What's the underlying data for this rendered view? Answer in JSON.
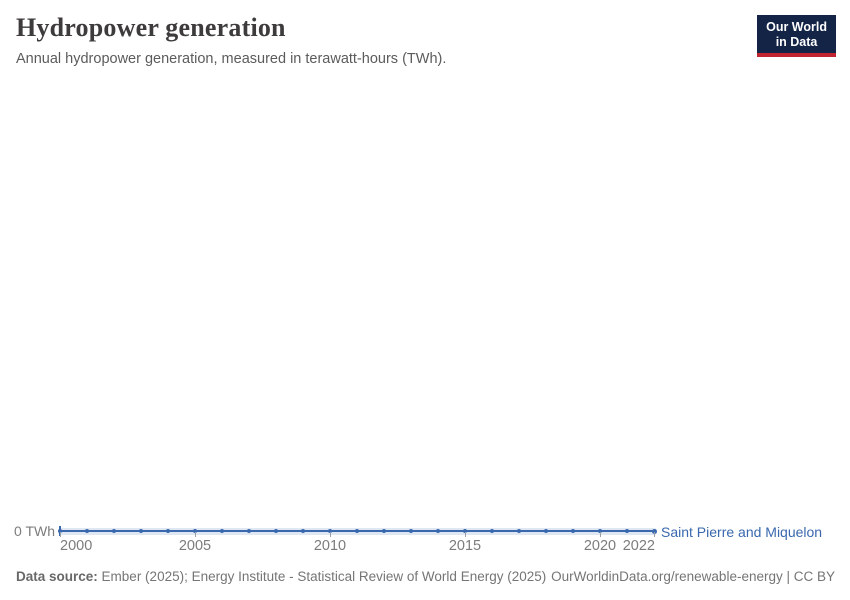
{
  "header": {
    "title": "Hydropower generation",
    "subtitle": "Annual hydropower generation, measured in terawatt-hours (TWh).",
    "logo_line1": "Our World",
    "logo_line2": "in Data"
  },
  "chart": {
    "entity_label": "Saint Pierre and Miquelon",
    "y_zero_label": "0 TWh"
  },
  "chart_data": {
    "type": "line",
    "title": "Hydropower generation",
    "subtitle": "Annual hydropower generation, measured in terawatt-hours (TWh).",
    "unit": "TWh",
    "x": [
      2000,
      2001,
      2002,
      2003,
      2004,
      2005,
      2006,
      2007,
      2008,
      2009,
      2010,
      2011,
      2012,
      2013,
      2014,
      2015,
      2016,
      2017,
      2018,
      2019,
      2020,
      2021,
      2022
    ],
    "series": [
      {
        "name": "Saint Pierre and Miquelon",
        "values": [
          0,
          0,
          0,
          0,
          0,
          0,
          0,
          0,
          0,
          0,
          0,
          0,
          0,
          0,
          0,
          0,
          0,
          0,
          0,
          0,
          0,
          0,
          0
        ]
      }
    ],
    "x_tick_years": [
      2000,
      2005,
      2010,
      2015,
      2020,
      2022
    ],
    "y_ticks": [
      "0 TWh"
    ],
    "ylim": [
      0,
      0
    ],
    "grid": false,
    "line_color": "#3a68ae",
    "legend_position": "end-of-line"
  },
  "footer": {
    "source_label": "Data source:",
    "source_text": "Ember (2025); Energy Institute - Statistical Review of World Energy (2025)",
    "right_text": "OurWorldinData.org/renewable-energy | CC BY"
  },
  "colors": {
    "accent_blue": "#3a68ae",
    "logo_navy": "#132447",
    "logo_red": "#bf2430"
  }
}
